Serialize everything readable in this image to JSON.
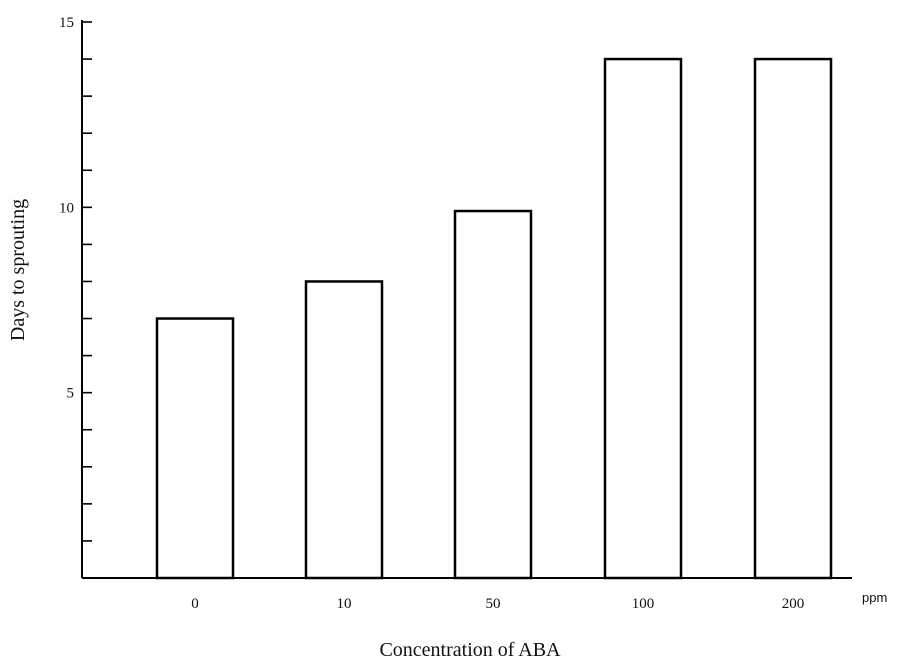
{
  "chart_data": {
    "type": "bar",
    "title": "",
    "xlabel": "Concentration of ABA",
    "ylabel": "Days to sprouting",
    "x_unit": "ppm",
    "categories": [
      "0",
      "10",
      "50",
      "100",
      "200"
    ],
    "values": [
      7,
      8,
      9.9,
      14,
      14
    ],
    "ylim": [
      0,
      15
    ],
    "yticks_major": [
      5,
      10,
      15
    ],
    "yticks_minor_step": 1,
    "grid": false,
    "legend": "none",
    "bar_fill": "#ffffff",
    "bar_stroke": "#000000"
  }
}
